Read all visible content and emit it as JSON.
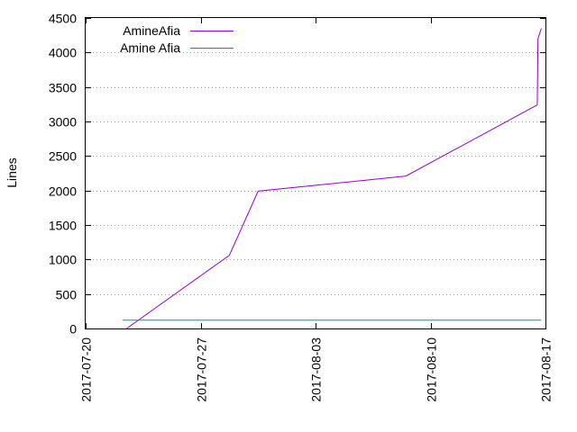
{
  "chart_data": {
    "type": "line",
    "ylabel": "Lines",
    "xlabel": "",
    "title": "",
    "ylim": [
      0,
      4500
    ],
    "xlim": [
      "2017-07-20",
      "2017-08-17"
    ],
    "yticks": [
      0,
      500,
      1000,
      1500,
      2000,
      2500,
      3000,
      3500,
      4000,
      4500
    ],
    "xticks": [
      "2017-07-20",
      "2017-07-27",
      "2017-08-03",
      "2017-08-10",
      "2017-08-17"
    ],
    "grid": "horizontal dotted",
    "legend_position": "top-left",
    "series": [
      {
        "name": "AmineAfia",
        "color": "#9400d3",
        "points": [
          {
            "x": "2017-07-22T12:00",
            "y": 0
          },
          {
            "x": "2017-07-28T18:00",
            "y": 1060
          },
          {
            "x": "2017-07-30T12:00",
            "y": 1990
          },
          {
            "x": "2017-08-08T12:00",
            "y": 2210
          },
          {
            "x": "2017-08-16T12:00",
            "y": 3240
          },
          {
            "x": "2017-08-16T13:00",
            "y": 4200
          },
          {
            "x": "2017-08-16T18:00",
            "y": 4350
          }
        ]
      },
      {
        "name": "Amine Afia",
        "color": "#009e73",
        "points": [
          {
            "x": "2017-07-22T06:00",
            "y": 120
          },
          {
            "x": "2017-08-16T18:00",
            "y": 120
          }
        ]
      }
    ]
  }
}
